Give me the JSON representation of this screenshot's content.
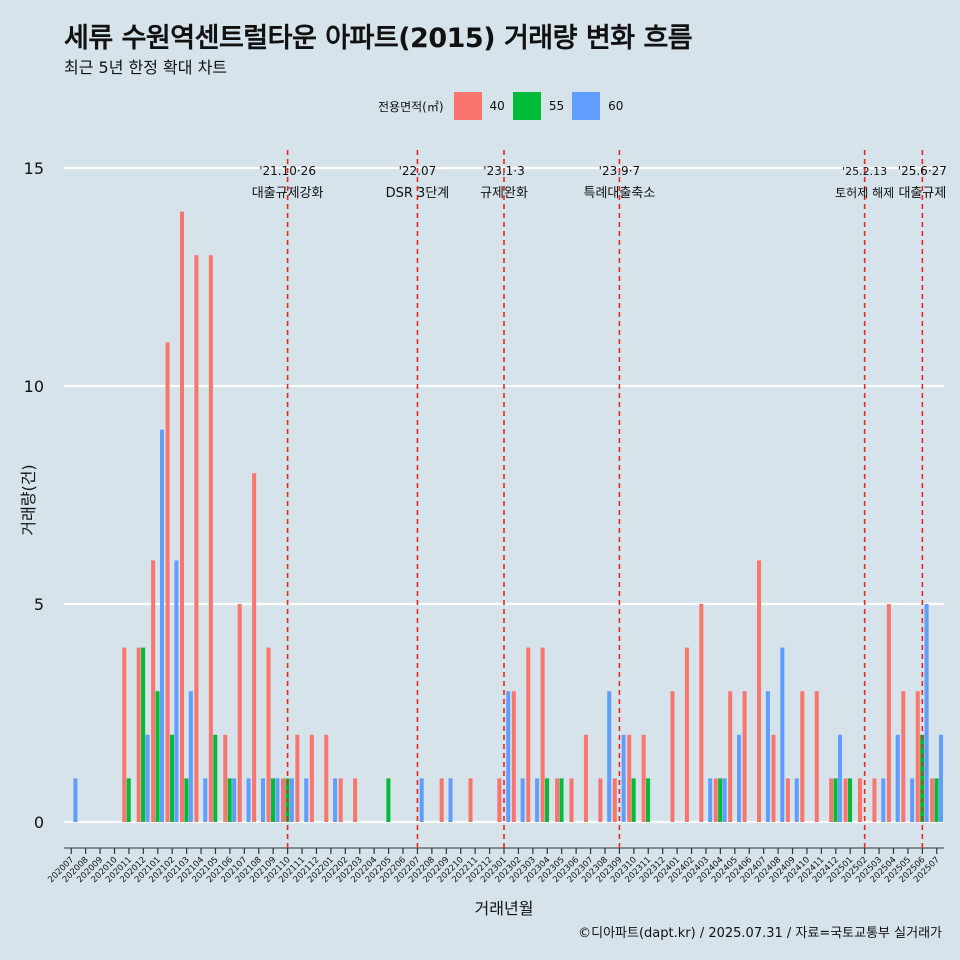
{
  "title": "세류 수원역센트럴타운 아파트(2015) 거래량 변화 흐름",
  "subtitle": "최근 5년 한정 확대 차트",
  "caption": "©디아파트(dapt.kr) / 2025.07.31 / 자료=국토교통부 실거래가",
  "legend": {
    "title": "전용면적(㎡)",
    "items": [
      {
        "label": "40",
        "color": "#f8766d"
      },
      {
        "label": "55",
        "color": "#00ba38"
      },
      {
        "label": "60",
        "color": "#619cff"
      }
    ]
  },
  "chart_data": {
    "type": "bar",
    "xlabel": "거래년월",
    "ylabel": "거래량(건)",
    "ylim": [
      0,
      15
    ],
    "yticks": [
      0,
      5,
      10,
      15
    ],
    "grid": true,
    "legend_position": "top",
    "categories": [
      "202007",
      "202008",
      "202009",
      "202010",
      "202011",
      "202012",
      "202101",
      "202102",
      "202103",
      "202104",
      "202105",
      "202106",
      "202107",
      "202108",
      "202109",
      "202110",
      "202111",
      "202112",
      "202201",
      "202202",
      "202203",
      "202204",
      "202205",
      "202206",
      "202207",
      "202208",
      "202209",
      "202210",
      "202211",
      "202212",
      "202301",
      "202302",
      "202303",
      "202304",
      "202305",
      "202306",
      "202307",
      "202308",
      "202309",
      "202310",
      "202311",
      "202312",
      "202401",
      "202402",
      "202403",
      "202404",
      "202405",
      "202406",
      "202407",
      "202408",
      "202409",
      "202410",
      "202411",
      "202412",
      "202501",
      "202502",
      "202503",
      "202504",
      "202505",
      "202506",
      "202507"
    ],
    "series": [
      {
        "name": "40",
        "color": "#f8766d",
        "values": [
          0,
          0,
          0,
          0,
          4,
          4,
          6,
          11,
          14,
          13,
          13,
          2,
          5,
          8,
          4,
          1,
          2,
          2,
          2,
          1,
          1,
          0,
          0,
          0,
          0,
          0,
          1,
          0,
          1,
          0,
          1,
          3,
          4,
          4,
          1,
          1,
          2,
          1,
          1,
          2,
          2,
          0,
          3,
          4,
          5,
          1,
          3,
          3,
          6,
          2,
          1,
          3,
          3,
          1,
          1,
          1,
          1,
          5,
          3,
          3,
          1
        ]
      },
      {
        "name": "55",
        "color": "#00ba38",
        "values": [
          0,
          0,
          0,
          0,
          1,
          4,
          3,
          2,
          1,
          0,
          2,
          1,
          0,
          0,
          1,
          1,
          0,
          0,
          0,
          0,
          0,
          0,
          1,
          0,
          0,
          0,
          0,
          0,
          0,
          0,
          0,
          0,
          0,
          1,
          1,
          0,
          0,
          0,
          0,
          1,
          1,
          0,
          0,
          0,
          0,
          1,
          0,
          0,
          0,
          0,
          0,
          0,
          0,
          1,
          1,
          0,
          0,
          0,
          0,
          2,
          1
        ]
      },
      {
        "name": "60",
        "color": "#619cff",
        "values": [
          1,
          0,
          0,
          0,
          0,
          2,
          9,
          6,
          3,
          1,
          0,
          1,
          1,
          1,
          1,
          1,
          1,
          0,
          1,
          0,
          0,
          0,
          0,
          0,
          1,
          0,
          1,
          0,
          0,
          0,
          3,
          1,
          1,
          0,
          0,
          0,
          0,
          3,
          2,
          0,
          0,
          0,
          0,
          0,
          1,
          1,
          2,
          0,
          3,
          4,
          1,
          0,
          0,
          2,
          0,
          0,
          1,
          2,
          1,
          5,
          2
        ]
      }
    ],
    "annotations": [
      {
        "at": "202110",
        "date": "'21.10·26",
        "label": "대출규제강화"
      },
      {
        "at": "202207",
        "date": "'22.07",
        "label": "DSR 3단계"
      },
      {
        "at": "202301",
        "date": "'23.1·3",
        "label": "규제완화"
      },
      {
        "at": "202309",
        "date": "'23.9·7",
        "label": "특례대출축소"
      },
      {
        "at": "202502",
        "date": "'25.2.13",
        "label": "토허제 해제"
      },
      {
        "at": "202506",
        "date": "'25.6·27",
        "label": "대출규제"
      }
    ]
  }
}
